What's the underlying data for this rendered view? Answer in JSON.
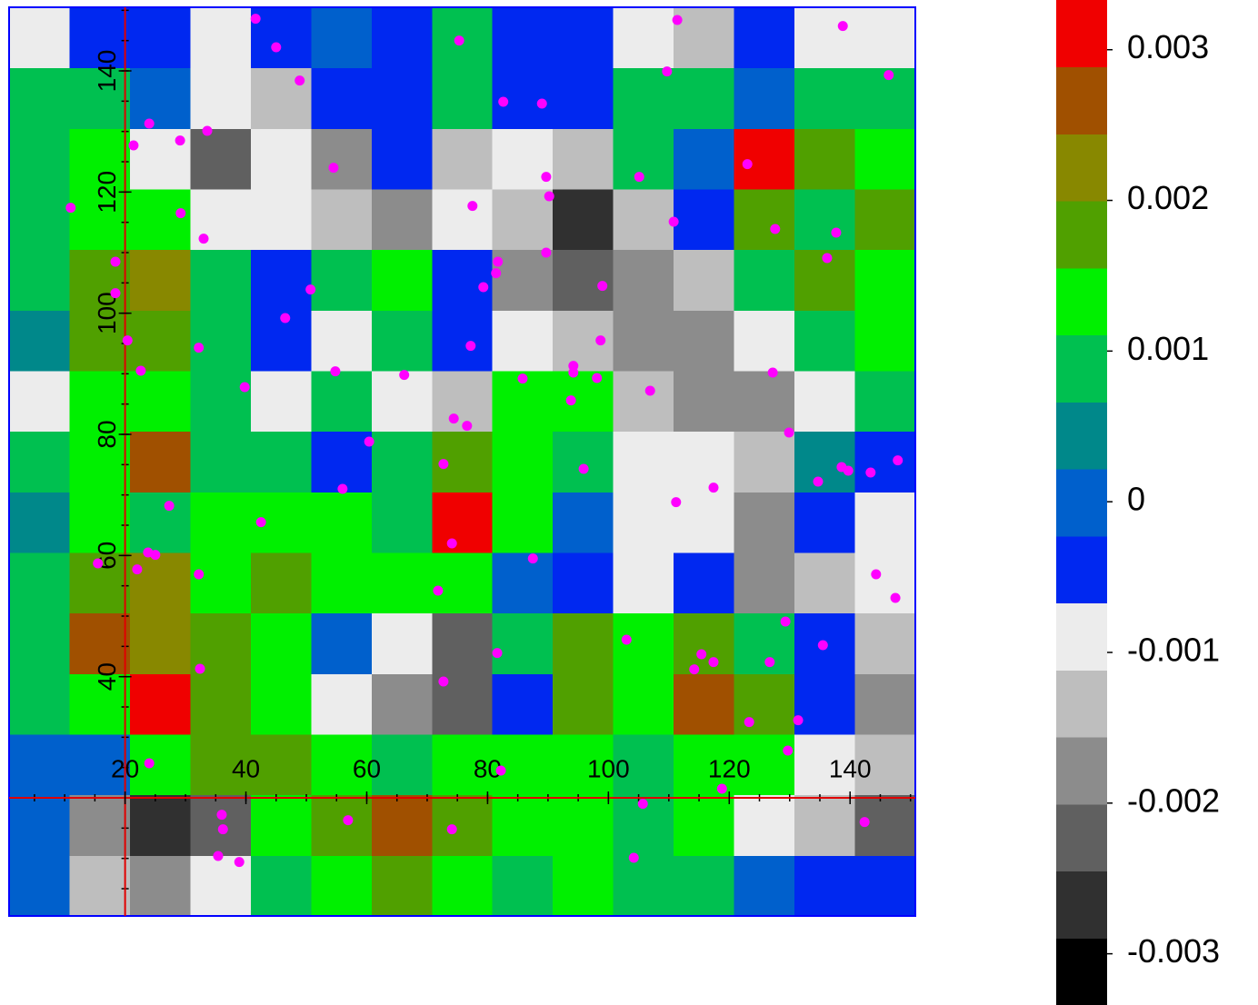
{
  "chart_data": {
    "type": "heatmap",
    "xlim": [
      0.8,
      150.8
    ],
    "ylim": [
      0.5,
      150.5
    ],
    "xticks": [
      20,
      40,
      60,
      80,
      100,
      120,
      140
    ],
    "yticks": [
      40,
      60,
      80,
      100,
      120,
      140
    ],
    "minor_tick_step": 5,
    "axis_color": "#e00000",
    "frame_color": "#0000ff",
    "x_edges": [
      0.8,
      10.8,
      20.8,
      30.8,
      40.8,
      50.8,
      60.8,
      70.8,
      80.8,
      90.8,
      100.8,
      110.8,
      120.8,
      130.8,
      140.8,
      150.8
    ],
    "y_edges": [
      0.5,
      10.5,
      20.5,
      30.5,
      40.5,
      50.5,
      60.5,
      70.5,
      80.5,
      90.5,
      100.5,
      110.5,
      120.5,
      130.5,
      140.5,
      150.5
    ],
    "z": [
      [
        0,
        -0.0013,
        -0.0018,
        -0.0009,
        0.0009,
        0.0013,
        0.0018,
        0.0013,
        0.0009,
        0.0013,
        0.0009,
        0.0009,
        0,
        -0.0004,
        -0.0004
      ],
      [
        0,
        -0.0018,
        -0.0027,
        -0.0022,
        0.0013,
        0.0018,
        0.0027,
        0.0018,
        0.0013,
        0.0013,
        0.0009,
        0.0013,
        -0.0009,
        -0.0013,
        -0.0022
      ],
      [
        0,
        0,
        0.0013,
        0.0018,
        0.0018,
        0.0013,
        0.0009,
        0.0013,
        0.0013,
        0.0013,
        0.0009,
        0.0013,
        0.0013,
        -0.0009,
        -0.0013
      ],
      [
        0.0009,
        0.0013,
        0.0031,
        0.0018,
        0.0013,
        -0.0009,
        -0.0018,
        -0.0022,
        -0.0004,
        0.0018,
        0.0013,
        0.0027,
        0.0018,
        -0.0004,
        -0.0018
      ],
      [
        0.0009,
        0.0027,
        0.0022,
        0.0018,
        0.0013,
        0,
        -0.0009,
        -0.0022,
        0.0009,
        0.0018,
        0.0013,
        0.0018,
        0.0009,
        -0.0004,
        -0.0013
      ],
      [
        0.0009,
        0.0018,
        0.0022,
        0.0013,
        0.0018,
        0.0013,
        0.0013,
        0.0013,
        0,
        -0.0004,
        -0.0009,
        -0.0004,
        -0.0018,
        -0.0013,
        -0.0009
      ],
      [
        0.0004,
        0.0013,
        0.0009,
        0.0013,
        0.0013,
        0.0013,
        0.0009,
        0.0031,
        0.0013,
        0,
        -0.0009,
        -0.0009,
        -0.0018,
        -0.0004,
        -0.0009
      ],
      [
        0.0009,
        0.0013,
        0.0027,
        0.0009,
        0.0009,
        -0.0004,
        0.0009,
        0.0018,
        0.0013,
        0.0009,
        -0.0009,
        -0.0009,
        -0.0013,
        0.0004,
        -0.0004
      ],
      [
        -0.0009,
        0.0013,
        0.0013,
        0.0009,
        -0.0009,
        0.0009,
        -0.0009,
        -0.0013,
        0.0013,
        0.0013,
        -0.0013,
        -0.0018,
        -0.0018,
        -0.0009,
        0.0009
      ],
      [
        0.0004,
        0.0018,
        0.0018,
        0.0009,
        -0.0004,
        -0.0009,
        0.0009,
        -0.0004,
        -0.0009,
        -0.0013,
        -0.0018,
        -0.0018,
        -0.0009,
        0.0009,
        0.0013
      ],
      [
        0.0009,
        0.0018,
        0.0022,
        0.0009,
        -0.0004,
        0.0009,
        0.0013,
        -0.0004,
        -0.0018,
        -0.0022,
        -0.0018,
        -0.0013,
        0.0009,
        0.0018,
        0.0013
      ],
      [
        0.0009,
        0.0013,
        0.0013,
        -0.0009,
        -0.0009,
        -0.0013,
        -0.0018,
        -0.0009,
        -0.0013,
        -0.0027,
        -0.0013,
        -0.0004,
        0.0018,
        0.0009,
        0.0018
      ],
      [
        0.0009,
        0.0013,
        -0.0009,
        -0.0022,
        -0.0009,
        -0.0018,
        -0.0004,
        -0.0013,
        -0.0009,
        -0.0013,
        0.0009,
        0,
        0.0031,
        0.0018,
        0.0013
      ],
      [
        0.0009,
        0.0009,
        0,
        -0.0009,
        -0.0013,
        -0.0004,
        -0.0004,
        0.0009,
        -0.0004,
        -0.0004,
        0.0009,
        0.0009,
        0,
        0.0009,
        0.0009
      ],
      [
        -0.0009,
        -0.0004,
        -0.0004,
        -0.0009,
        -0.0004,
        0,
        -0.0004,
        0.0009,
        -0.0004,
        -0.0004,
        -0.0009,
        -0.0013,
        -0.0004,
        -0.0009,
        -0.0009
      ]
    ],
    "zlim": [
      -0.00334,
      0.00333
    ],
    "colors": [
      "#000000",
      "#303030",
      "#606060",
      "#8c8c8c",
      "#bebebe",
      "#ececec",
      "#0028f0",
      "#0060cc",
      "#00888a",
      "#00c050",
      "#00f000",
      "#50a000",
      "#888800",
      "#a05000",
      "#f00000"
    ],
    "colorbar_ticks": [
      -0.003,
      -0.002,
      -0.001,
      0,
      0.001,
      0.002,
      0.003
    ],
    "points": {
      "color": "#ff00ff",
      "x": [
        41.6,
        45.0,
        48.9,
        75.3,
        111.4,
        138.8,
        146.4,
        109.7,
        82.6,
        89.0,
        24.0,
        33.6,
        21.4,
        29.1,
        54.5,
        89.7,
        105.1,
        123.0,
        90.2,
        77.5,
        11.0,
        29.2,
        110.8,
        127.6,
        137.7,
        33.0,
        89.7,
        81.7,
        81.4,
        18.4,
        136.2,
        79.3,
        99.0,
        50.7,
        18.4,
        46.5,
        20.4,
        32.2,
        77.2,
        98.7,
        22.6,
        54.8,
        66.2,
        94.2,
        94.2,
        98.1,
        85.8,
        127.2,
        39.8,
        93.8,
        106.9,
        74.4,
        76.6,
        129.9,
        60.4,
        72.7,
        95.9,
        138.6,
        139.7,
        143.4,
        147.9,
        134.7,
        117.4,
        56.0,
        111.2,
        27.3,
        42.5,
        74.1,
        23.8,
        25.0,
        15.5,
        22.0,
        87.5,
        32.2,
        144.3,
        147.5,
        71.8,
        129.3,
        103.0,
        135.5,
        81.6,
        115.4,
        117.4,
        114.2,
        32.4,
        126.7,
        72.7,
        123.3,
        131.4,
        129.7,
        24.0,
        82.2,
        118.8,
        105.7,
        36.0,
        56.9,
        74.1,
        36.2,
        142.4,
        35.4,
        38.9,
        104.2
      ],
      "y": [
        148.6,
        143.9,
        138.4,
        145.0,
        148.4,
        147.4,
        139.3,
        139.9,
        134.9,
        134.6,
        131.3,
        130.1,
        127.7,
        128.5,
        124.0,
        122.5,
        122.5,
        124.6,
        119.3,
        117.7,
        117.4,
        116.5,
        115.1,
        113.9,
        113.3,
        112.3,
        110.0,
        108.5,
        106.6,
        108.5,
        109.1,
        104.3,
        104.5,
        103.9,
        103.3,
        99.2,
        95.5,
        94.3,
        94.6,
        95.5,
        90.5,
        90.4,
        89.8,
        91.3,
        90.2,
        89.3,
        89.2,
        90.2,
        87.8,
        85.6,
        87.2,
        82.6,
        81.4,
        80.3,
        78.8,
        75.1,
        74.3,
        74.6,
        74.0,
        73.7,
        75.7,
        72.2,
        71.2,
        71.0,
        68.8,
        68.2,
        65.5,
        62.0,
        60.5,
        60.1,
        58.7,
        57.7,
        59.5,
        56.9,
        56.9,
        53.0,
        54.2,
        49.1,
        46.1,
        45.2,
        43.9,
        43.7,
        42.4,
        41.2,
        41.3,
        42.4,
        39.2,
        32.5,
        32.8,
        27.8,
        25.7,
        24.5,
        21.5,
        19.0,
        17.2,
        16.3,
        14.8,
        14.8,
        16.0,
        10.4,
        9.4,
        10.1
      ]
    }
  }
}
